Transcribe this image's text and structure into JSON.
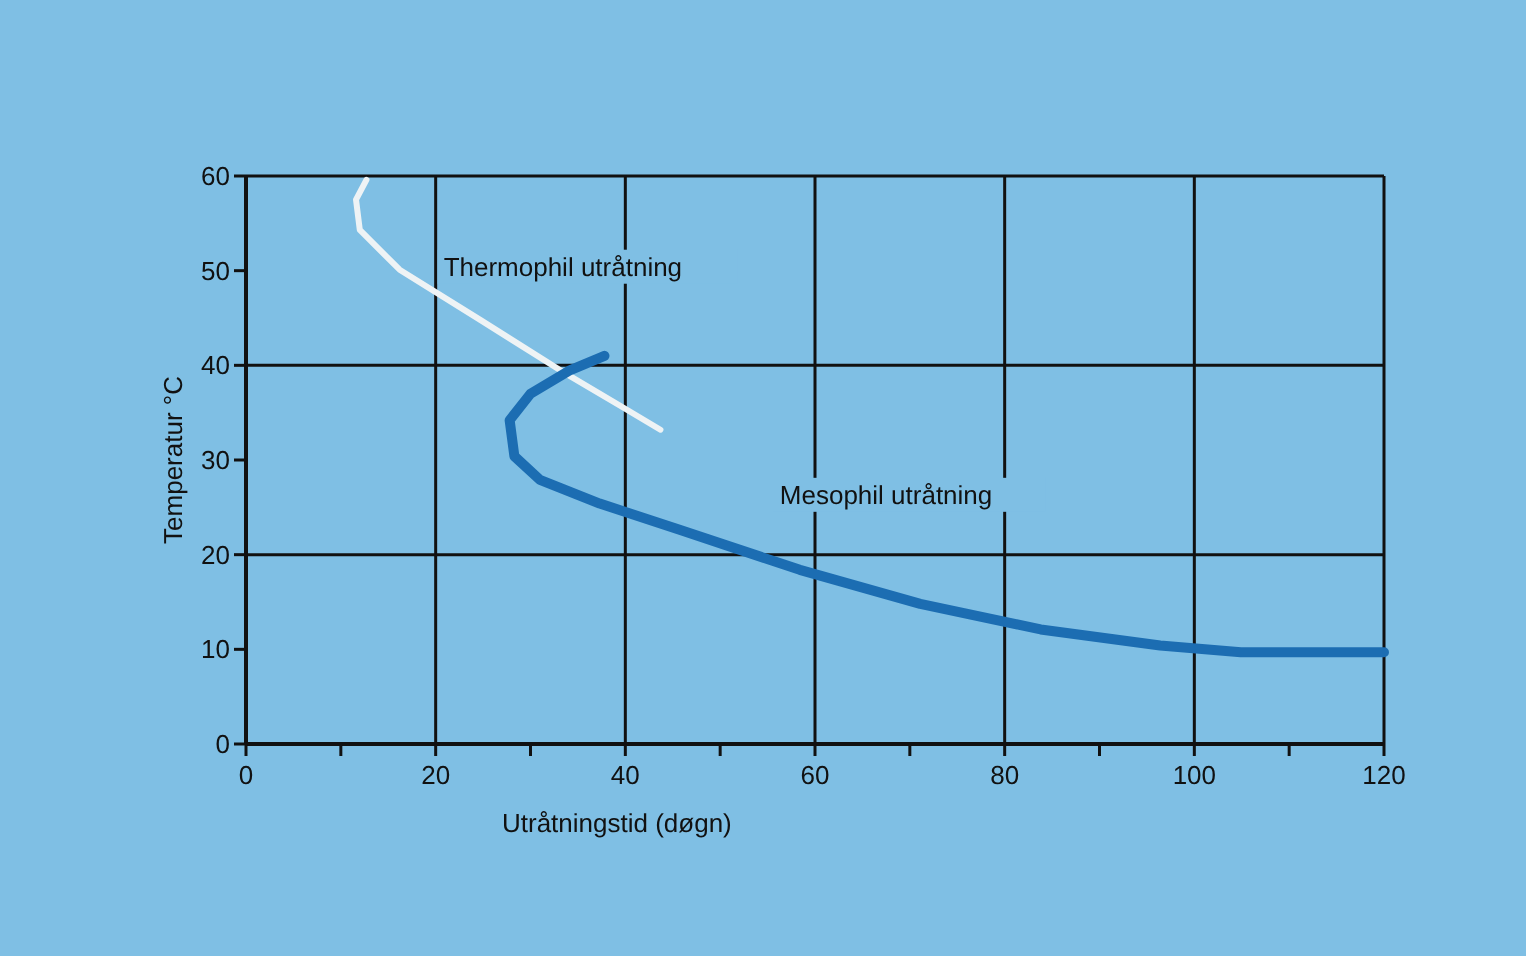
{
  "chart_data": {
    "type": "line",
    "xlabel": "Utråtningstid (døgn)",
    "ylabel": "Temperatur °C",
    "xlim": [
      0,
      120
    ],
    "ylim": [
      0,
      60
    ],
    "xticks": [
      0,
      {
        "value": 10,
        "label": null
      },
      20,
      {
        "value": 30,
        "label": null
      },
      40,
      {
        "value": 50,
        "label": null
      },
      60,
      {
        "value": 70,
        "label": null
      },
      80,
      {
        "value": 90,
        "label": null
      },
      100,
      {
        "value": 110,
        "label": null
      },
      120
    ],
    "yticks": [
      0,
      10,
      20,
      30,
      40,
      50,
      60
    ],
    "grid": true,
    "line_style": "solid",
    "marker": "none",
    "series": [
      {
        "name": "Thermophil utråtning",
        "color": "#eef3f5",
        "x": [
          12.7,
          11.6,
          12.0,
          16.2,
          24.7,
          33.1,
          39.5,
          43.7
        ],
        "values": [
          59.6,
          57.5,
          54.3,
          50.1,
          44.8,
          39.5,
          35.7,
          33.2
        ]
      },
      {
        "name": "Mesophil utråtning",
        "color": "#1c6db2",
        "x": [
          37.8,
          34.2,
          30.0,
          27.8,
          28.3,
          31.0,
          37.3,
          45.8,
          58.4,
          71.1,
          83.8,
          96.4,
          104.9,
          120
        ],
        "values": [
          41.0,
          39.5,
          37.0,
          34.2,
          30.4,
          27.9,
          25.4,
          22.6,
          18.4,
          14.8,
          12.1,
          10.4,
          9.7,
          9.7
        ]
      }
    ]
  }
}
